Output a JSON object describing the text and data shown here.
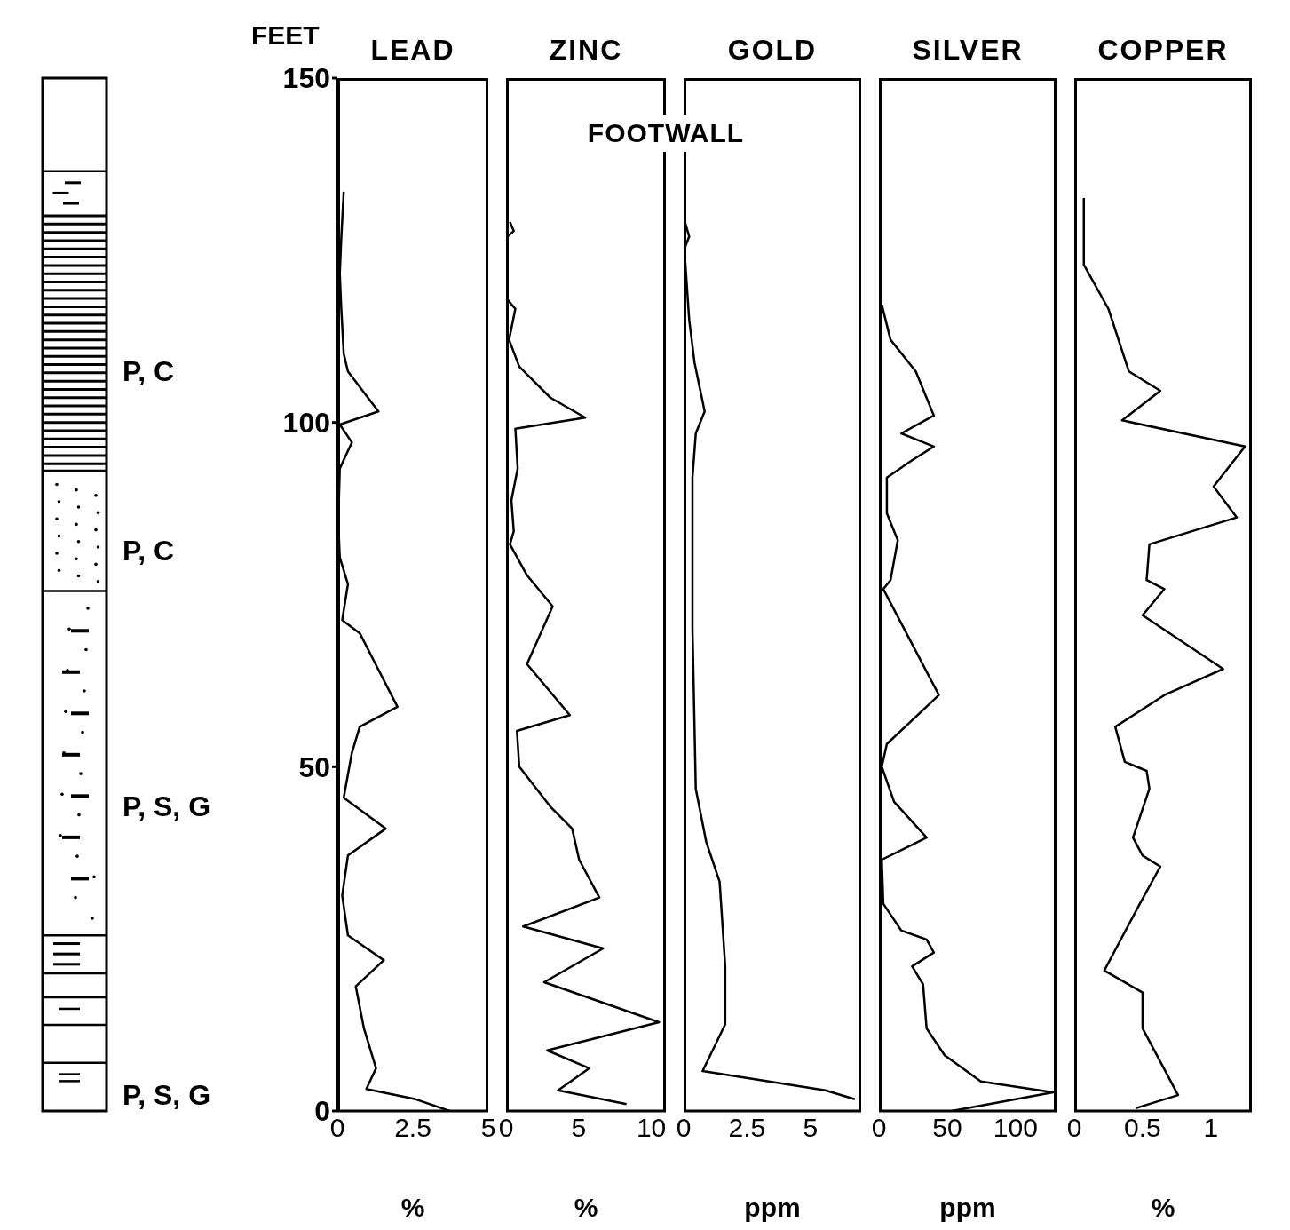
{
  "chart_data": [
    {
      "type": "line",
      "title": "LEAD",
      "xlabel": "%",
      "ylabel": "FEET",
      "xlim": [
        0,
        5
      ],
      "xticks": [
        0,
        2.5,
        5
      ],
      "ylim": [
        0,
        150
      ],
      "yticks": [
        0,
        50,
        100,
        150
      ],
      "annotations": [
        "P, C",
        "P, C",
        "P, S, G",
        "P, S, G"
      ],
      "series": [
        {
          "color": "#000000",
          "x": [
            0.21,
            0.13,
            0.08,
            0.13,
            0.21,
            0.35,
            1.36,
            0.08,
            0.48,
            0.08,
            0.03,
            0.08,
            0.35,
            0.16,
            0.74,
            1.99,
            0.74,
            0.48,
            0.21,
            1.6,
            0.35,
            0.16,
            0.35,
            1.54,
            0.61,
            0.88,
            1.28,
            0.96,
            2.6,
            3.72
          ],
          "values": [
            133.5,
            126.8,
            121.6,
            116.5,
            110,
            107.4,
            101.6,
            99.7,
            97.1,
            93.3,
            85.5,
            80.4,
            76.5,
            71.3,
            69.4,
            58.7,
            55.8,
            52,
            45.5,
            41,
            37.1,
            31.3,
            25.5,
            21.9,
            18.1,
            12,
            6.2,
            3.2,
            1.7,
            0
          ]
        }
      ]
    },
    {
      "type": "line",
      "title": "ZINC",
      "xlabel": "%",
      "xlim": [
        0,
        11
      ],
      "xticks": [
        0,
        5,
        10
      ],
      "ylim": [
        0,
        150
      ],
      "tick_labels": "x",
      "annotations": [
        "FOOTWALL"
      ],
      "series": [
        {
          "color": "#000000",
          "x": [
            0.27,
            0.53,
            0,
            0.11,
            0.64,
            0.21,
            0.91,
            3.05,
            5.45,
            0.64,
            0.8,
            0.37,
            0.53,
            0.27,
            1.44,
            3.21,
            1.44,
            4.39,
            0.75,
            0.91,
            3.05,
            4.55,
            5.03,
            6.42,
            1.18,
            6.68,
            2.62,
            10.53,
            2.83,
            5.72,
            3.58,
            8.29
          ],
          "values": [
            129.1,
            127.8,
            126.8,
            117.8,
            116.5,
            112,
            108.1,
            103.6,
            100.7,
            99.1,
            93.3,
            88.7,
            84.2,
            82.3,
            77.8,
            73.3,
            64.9,
            57.5,
            55.2,
            50,
            44.2,
            41,
            36.5,
            31,
            26.8,
            23.6,
            18.7,
            12.9,
            8.8,
            6.2,
            3,
            1
          ]
        }
      ]
    },
    {
      "type": "line",
      "title": "GOLD",
      "xlabel": "ppm",
      "xlim": [
        0,
        7
      ],
      "xticks": [
        0,
        2.5,
        5
      ],
      "ylim": [
        0,
        150
      ],
      "tick_labels": "x",
      "series": [
        {
          "color": "#000000",
          "x": [
            0.03,
            0.22,
            0.03,
            0.22,
            0.43,
            0.83,
            0.48,
            0.35,
            0.35,
            0.48,
            0.89,
            1.42,
            1.64,
            1.64,
            0.75,
            5.59,
            6.75
          ],
          "values": [
            129.4,
            127,
            125.2,
            114.9,
            108.7,
            101.6,
            98.4,
            92,
            70,
            46.8,
            39.1,
            33.3,
            21,
            12.6,
            5.8,
            3,
            1.7
          ]
        }
      ]
    },
    {
      "type": "line",
      "title": "SILVER",
      "xlabel": "ppm",
      "xlim": [
        0,
        130
      ],
      "xticks": [
        0,
        50,
        100
      ],
      "ylim": [
        0,
        150
      ],
      "tick_labels": "x",
      "series": [
        {
          "color": "#000000",
          "x": [
            2.1,
            8.5,
            27,
            40.2,
            16.4,
            40.2,
            24.3,
            5.8,
            5.8,
            13.8,
            8.5,
            3.2,
            43.9,
            5.8,
            2.1,
            11.1,
            34.9,
            2.1,
            3.2,
            16.4,
            34.9,
            40.2,
            24.3,
            32.3,
            34.9,
            48.1,
            74.6,
            127.5,
            53.4
          ],
          "values": [
            117.1,
            112,
            107.4,
            101,
            98.4,
            96.5,
            94.5,
            92,
            86.8,
            82.9,
            77.1,
            75.8,
            60.4,
            53.3,
            50,
            44.9,
            39.7,
            36.5,
            30.1,
            26.2,
            24.9,
            23,
            21,
            18.4,
            12,
            8.1,
            4.3,
            2.7,
            0
          ]
        }
      ]
    },
    {
      "type": "line",
      "title": "COPPER",
      "xlabel": "%",
      "xlim": [
        0,
        1.3
      ],
      "xticks": [
        0,
        0.5,
        1
      ],
      "ylim": [
        0,
        150
      ],
      "tick_labels": "x",
      "series": [
        {
          "color": "#000000",
          "x": [
            0.07,
            0.07,
            0.25,
            0.4,
            0.63,
            0.35,
            1.25,
            1.02,
            1.19,
            0.55,
            0.53,
            0.66,
            0.5,
            1.09,
            0.66,
            0.3,
            0.37,
            0.53,
            0.55,
            0.43,
            0.5,
            0.63,
            0.48,
            0.22,
            0.5,
            0.5,
            0.76,
            0.45
          ],
          "values": [
            132.6,
            122.9,
            116.5,
            107.4,
            104.6,
            100.3,
            96.5,
            90.7,
            86.2,
            82.3,
            77.1,
            75.8,
            72,
            64.2,
            60.4,
            55.8,
            50.7,
            49.4,
            46.8,
            39.7,
            37.1,
            35.5,
            30.1,
            20.4,
            17.2,
            12,
            2.3,
            0.4
          ]
        }
      ]
    }
  ]
}
